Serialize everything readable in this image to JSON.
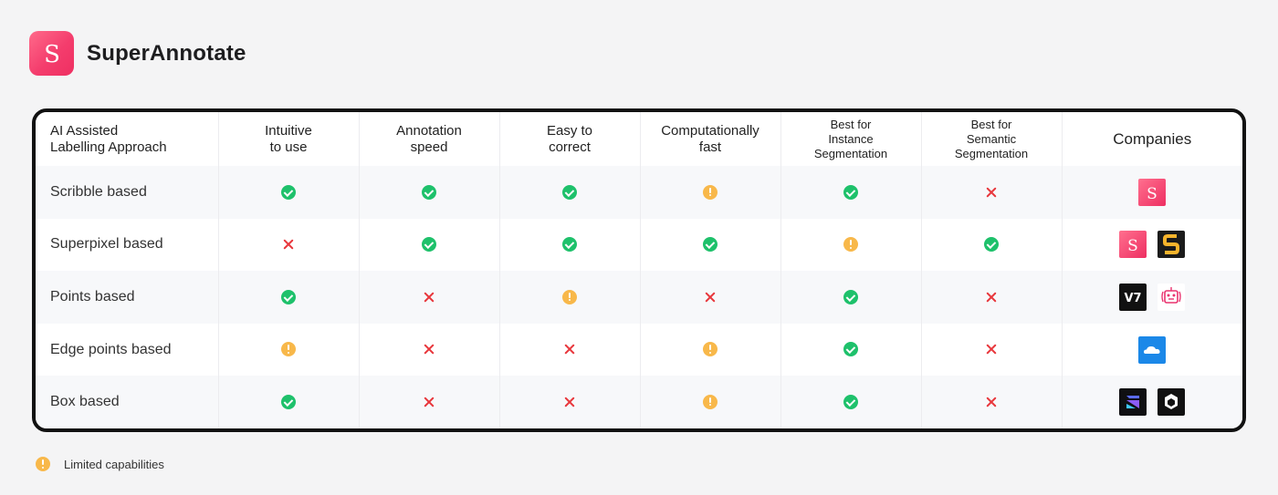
{
  "brand": {
    "name": "SuperAnnotate",
    "logo_letter": "S"
  },
  "table": {
    "headers": {
      "approach": [
        "AI Assisted",
        "Labelling Approach"
      ],
      "intuitive": [
        "Intuitive",
        "to use"
      ],
      "speed": [
        "Annotation",
        "speed"
      ],
      "correct": [
        "Easy to",
        "correct"
      ],
      "fast": [
        "Computationally",
        "fast"
      ],
      "instance": [
        "Best for",
        "Instance",
        "Segmentation"
      ],
      "semantic": [
        "Best for",
        "Semantic",
        "Segmentation"
      ],
      "companies": "Companies"
    },
    "rows": [
      {
        "name": "Scribble based",
        "marks": [
          "yes",
          "yes",
          "yes",
          "limited",
          "yes",
          "no"
        ],
        "companies": [
          "superannotate-logo"
        ]
      },
      {
        "name": "Superpixel based",
        "marks": [
          "no",
          "yes",
          "yes",
          "yes",
          "limited",
          "yes"
        ],
        "companies": [
          "superannotate-logo",
          "supervisely-logo"
        ]
      },
      {
        "name": "Points based",
        "marks": [
          "yes",
          "no",
          "limited",
          "no",
          "yes",
          "no"
        ],
        "companies": [
          "v7-logo",
          "robot-logo"
        ]
      },
      {
        "name": "Edge points based",
        "marks": [
          "limited",
          "no",
          "no",
          "limited",
          "yes",
          "no"
        ],
        "companies": [
          "cloud-logo"
        ]
      },
      {
        "name": "Box based",
        "marks": [
          "yes",
          "no",
          "no",
          "limited",
          "yes",
          "no"
        ],
        "companies": [
          "arrow-logo",
          "cube-logo"
        ]
      }
    ]
  },
  "v7_text": "V7",
  "legend": {
    "icon": "limited-icon",
    "label": "Limited capabilities"
  },
  "colors": {
    "yes": "#1ec16b",
    "no": "#e8383d",
    "limited": "#f8b84a",
    "brand": "#f43d6d"
  }
}
